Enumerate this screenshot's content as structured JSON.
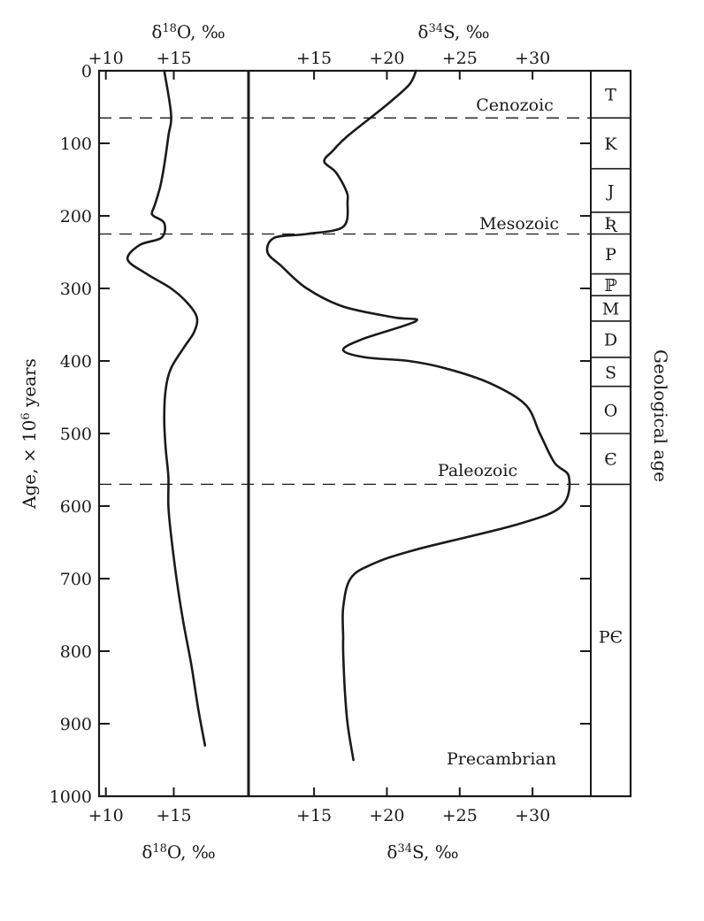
{
  "chart_data": {
    "type": "line",
    "y_axis": {
      "label_pre": "Age, × 10",
      "label_sup": "6",
      "label_post": " years",
      "range": [
        0,
        1000
      ],
      "ticks": [
        "0",
        "100",
        "200",
        "300",
        "400",
        "500",
        "600",
        "700",
        "800",
        "900",
        "1000"
      ],
      "reversed": true
    },
    "right_axis_label": "Geological age",
    "panels": [
      {
        "name": "oxygen",
        "title_pre": "δ",
        "title_sup": "18",
        "title_post": "O, ‰",
        "xlim": [
          9.5,
          20.5
        ],
        "ticks": [
          {
            "value": 10,
            "label": "+10"
          },
          {
            "value": 15,
            "label": "+15"
          }
        ],
        "series": {
          "x": [
            14.3,
            14.8,
            14.6,
            14.3,
            14.0,
            13.6,
            13.4,
            13.5,
            14.3,
            14.1,
            12.5,
            11.6,
            13.0,
            14.8,
            16.0,
            16.7,
            16.5,
            15.8,
            14.8,
            14.4,
            14.3,
            14.4,
            14.6,
            14.6,
            14.8,
            15.2,
            15.7,
            16.3,
            16.8,
            17.3
          ],
          "y": [
            0,
            60,
            90,
            130,
            160,
            185,
            195,
            200,
            210,
            230,
            240,
            260,
            280,
            300,
            320,
            340,
            360,
            380,
            410,
            440,
            480,
            520,
            560,
            600,
            640,
            700,
            760,
            820,
            880,
            930
          ]
        }
      },
      {
        "name": "sulfur",
        "title_pre": "δ",
        "title_sup": "34",
        "title_post": "S, ‰",
        "xlim": [
          10.5,
          34
        ],
        "ticks": [
          {
            "value": 15,
            "label": "+15"
          },
          {
            "value": 20,
            "label": "+20"
          },
          {
            "value": 25,
            "label": "+25"
          },
          {
            "value": 30,
            "label": "+30"
          }
        ],
        "series": {
          "x": [
            22.0,
            21.5,
            19.8,
            17.3,
            16.3,
            15.7,
            16.5,
            17.2,
            17.3,
            17.0,
            14.5,
            12.3,
            11.8,
            12.8,
            14.5,
            17.0,
            20.5,
            22.0,
            18.3,
            17.0,
            18.5,
            21.5,
            24.0,
            27.0,
            29.5,
            30.5,
            31.5,
            32.5,
            32.0,
            29.0,
            22.0,
            19.0,
            17.5,
            17.0,
            17.0,
            17.0,
            17.1,
            17.3,
            17.7
          ],
          "y": [
            0,
            20,
            50,
            90,
            110,
            125,
            140,
            165,
            180,
            215,
            225,
            230,
            250,
            270,
            300,
            325,
            340,
            345,
            370,
            385,
            395,
            400,
            410,
            430,
            460,
            500,
            540,
            560,
            600,
            625,
            660,
            680,
            700,
            740,
            780,
            800,
            850,
            900,
            950
          ]
        }
      }
    ],
    "boundaries": [
      {
        "age": 65,
        "label": "Cenozoic"
      },
      {
        "age": 225,
        "label": "Mesozoic"
      },
      {
        "age": 570,
        "label": "Paleozoic"
      }
    ],
    "bottom_label": "Precambrian",
    "periods": [
      {
        "label": "T",
        "from": 0,
        "to": 65
      },
      {
        "label": "K",
        "from": 65,
        "to": 135
      },
      {
        "label": "J",
        "from": 135,
        "to": 195
      },
      {
        "label": "Ʀ",
        "from": 195,
        "to": 225
      },
      {
        "label": "P",
        "from": 225,
        "to": 280
      },
      {
        "label": "ℙ",
        "from": 280,
        "to": 310
      },
      {
        "label": "M",
        "from": 310,
        "to": 345
      },
      {
        "label": "D",
        "from": 345,
        "to": 395
      },
      {
        "label": "S",
        "from": 395,
        "to": 435
      },
      {
        "label": "O",
        "from": 435,
        "to": 500
      },
      {
        "label": "Є",
        "from": 500,
        "to": 570
      },
      {
        "label": "PЄ",
        "from": 570,
        "to": 1000
      }
    ],
    "grid": false
  }
}
